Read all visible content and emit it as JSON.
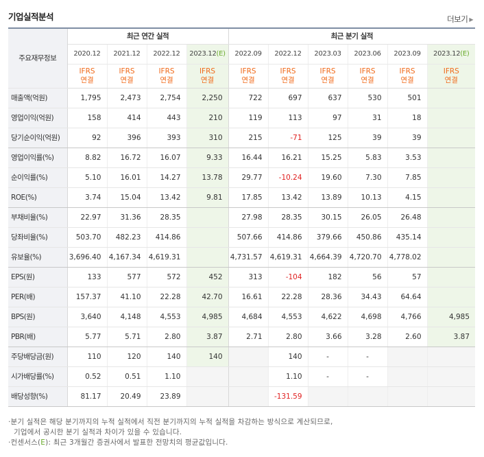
{
  "title": "기업실적분석",
  "more_label": "더보기",
  "header": {
    "row_label": "주요재무정보",
    "annual_group": "최근 연간 실적",
    "quarter_group": "최근 분기 실적",
    "annual_periods": [
      "2020.12",
      "2021.12",
      "2022.12",
      "2023.12"
    ],
    "quarter_periods": [
      "2022.09",
      "2022.12",
      "2023.03",
      "2023.06",
      "2023.09",
      "2023.12"
    ],
    "estimate_mark": "(E)",
    "report_top": "IFRS",
    "report_bottom": "연결"
  },
  "rows": [
    {
      "label": "매출액(억원)",
      "values": [
        "1,795",
        "2,473",
        "2,754",
        "2,250",
        "722",
        "697",
        "637",
        "530",
        "501",
        ""
      ]
    },
    {
      "label": "영업이익(억원)",
      "values": [
        "158",
        "414",
        "443",
        "210",
        "119",
        "113",
        "97",
        "31",
        "18",
        ""
      ]
    },
    {
      "label": "당기순이익(억원)",
      "values": [
        "92",
        "396",
        "393",
        "310",
        "215",
        "-71",
        "125",
        "39",
        "39",
        ""
      ]
    },
    {
      "label": "영업이익률(%)",
      "values": [
        "8.82",
        "16.72",
        "16.07",
        "9.33",
        "16.44",
        "16.21",
        "15.25",
        "5.83",
        "3.53",
        ""
      ]
    },
    {
      "label": "순이익률(%)",
      "values": [
        "5.10",
        "16.01",
        "14.27",
        "13.78",
        "29.77",
        "-10.24",
        "19.60",
        "7.30",
        "7.85",
        ""
      ]
    },
    {
      "label": "ROE(%)",
      "values": [
        "3.74",
        "15.04",
        "13.42",
        "9.81",
        "17.85",
        "13.42",
        "13.89",
        "10.13",
        "4.15",
        ""
      ]
    },
    {
      "label": "부채비율(%)",
      "values": [
        "22.97",
        "31.36",
        "28.35",
        "",
        "27.98",
        "28.35",
        "30.15",
        "26.05",
        "26.48",
        ""
      ]
    },
    {
      "label": "당좌비율(%)",
      "values": [
        "503.70",
        "482.23",
        "414.86",
        "",
        "507.66",
        "414.86",
        "379.66",
        "450.86",
        "435.14",
        ""
      ]
    },
    {
      "label": "유보율(%)",
      "values": [
        "3,696.40",
        "4,167.34",
        "4,619.31",
        "",
        "4,731.57",
        "4,619.31",
        "4,664.39",
        "4,720.70",
        "4,778.02",
        ""
      ]
    },
    {
      "label": "EPS(원)",
      "values": [
        "133",
        "577",
        "572",
        "452",
        "313",
        "-104",
        "182",
        "56",
        "57",
        ""
      ]
    },
    {
      "label": "PER(배)",
      "values": [
        "157.37",
        "41.10",
        "22.28",
        "42.70",
        "16.61",
        "22.28",
        "28.36",
        "34.43",
        "64.64",
        ""
      ]
    },
    {
      "label": "BPS(원)",
      "values": [
        "3,640",
        "4,148",
        "4,553",
        "4,985",
        "4,684",
        "4,553",
        "4,622",
        "4,698",
        "4,766",
        "4,985"
      ]
    },
    {
      "label": "PBR(배)",
      "values": [
        "5.77",
        "5.71",
        "2.80",
        "3.87",
        "2.71",
        "2.80",
        "3.66",
        "3.28",
        "2.60",
        "3.87"
      ]
    },
    {
      "label": "주당배당금(원)",
      "values": [
        "110",
        "120",
        "140",
        "140",
        "",
        "140",
        "-",
        "-",
        "",
        ""
      ]
    },
    {
      "label": "시가배당률(%)",
      "values": [
        "0.52",
        "0.51",
        "1.10",
        "",
        "",
        "1.10",
        "-",
        "-",
        "",
        ""
      ]
    },
    {
      "label": "배당성향(%)",
      "values": [
        "81.17",
        "20.49",
        "23.89",
        "",
        "",
        "-131.59",
        "",
        "",
        "",
        ""
      ]
    }
  ],
  "notes": {
    "line1": "분기 실적은 해당 분기까지의 누적 실적에서 직전 분기까지의 누적 실적을 차감하는 방식으로 계산되므로,",
    "line2": "기업에서 공시한 분기 실적과 차이가 있을 수 있습니다.",
    "line3_prefix": "컨센서스(",
    "line3_mark": "E",
    "line3_suffix": "): 최근 3개월간 증권사에서 발표한 전망치의 평균값입니다."
  }
}
